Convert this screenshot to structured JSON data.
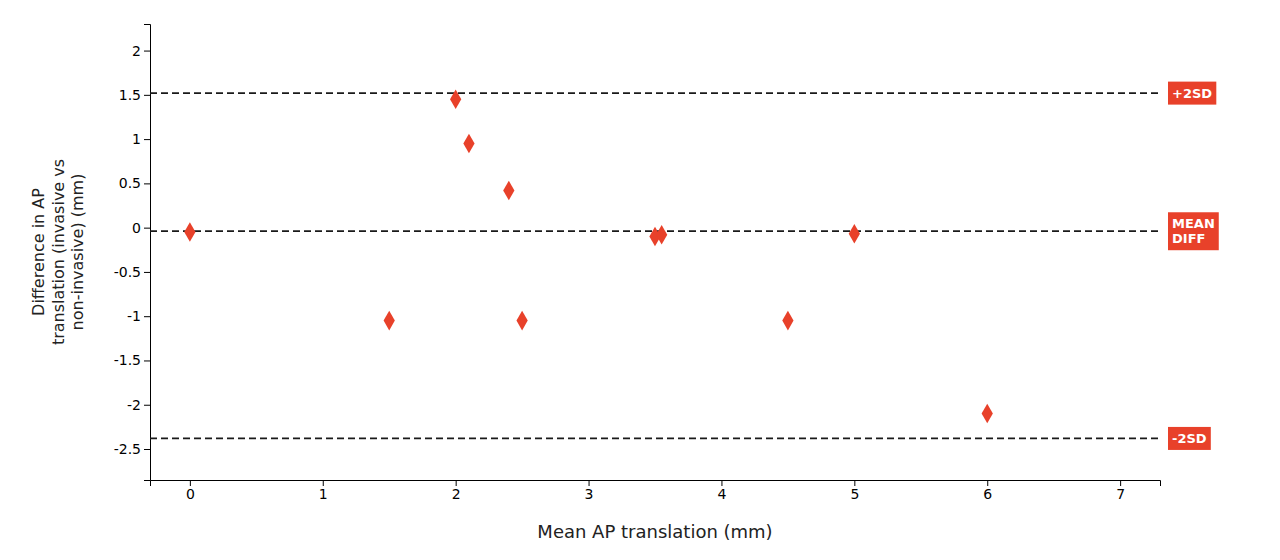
{
  "chart_data": {
    "type": "scatter",
    "x": [
      0.0,
      1.5,
      2.0,
      2.1,
      2.4,
      2.5,
      3.5,
      3.55,
      4.5,
      5.0,
      6.0
    ],
    "values": [
      -0.05,
      -1.05,
      1.45,
      0.95,
      0.42,
      -1.05,
      -0.1,
      -0.08,
      -1.05,
      -0.07,
      -2.1
    ],
    "color": "#e8412a",
    "marker": "diamond",
    "xlabel": "Mean AP translation (mm)",
    "ylabel": "Difference in AP\ntranslation (invasive vs\nnon-invasive) (mm)",
    "xlim": [
      -0.3,
      7.3
    ],
    "ylim": [
      -2.85,
      2.3
    ],
    "xticks": [
      0,
      1,
      2,
      3,
      4,
      5,
      6,
      7
    ],
    "yticks": [
      -2.5,
      -2,
      -1.5,
      -1,
      -0.5,
      0,
      0.5,
      1,
      1.5,
      2
    ],
    "grid": false,
    "reference_lines": [
      {
        "y": -0.04,
        "label": "MEAN\nDIFF",
        "color": "#1a1a1a",
        "line_style": "dashed"
      },
      {
        "y": 1.52,
        "label": "+2SD",
        "color": "#1a1a1a",
        "line_style": "dashed"
      },
      {
        "y": -2.38,
        "label": "-2SD",
        "color": "#1a1a1a",
        "line_style": "dashed"
      }
    ]
  }
}
